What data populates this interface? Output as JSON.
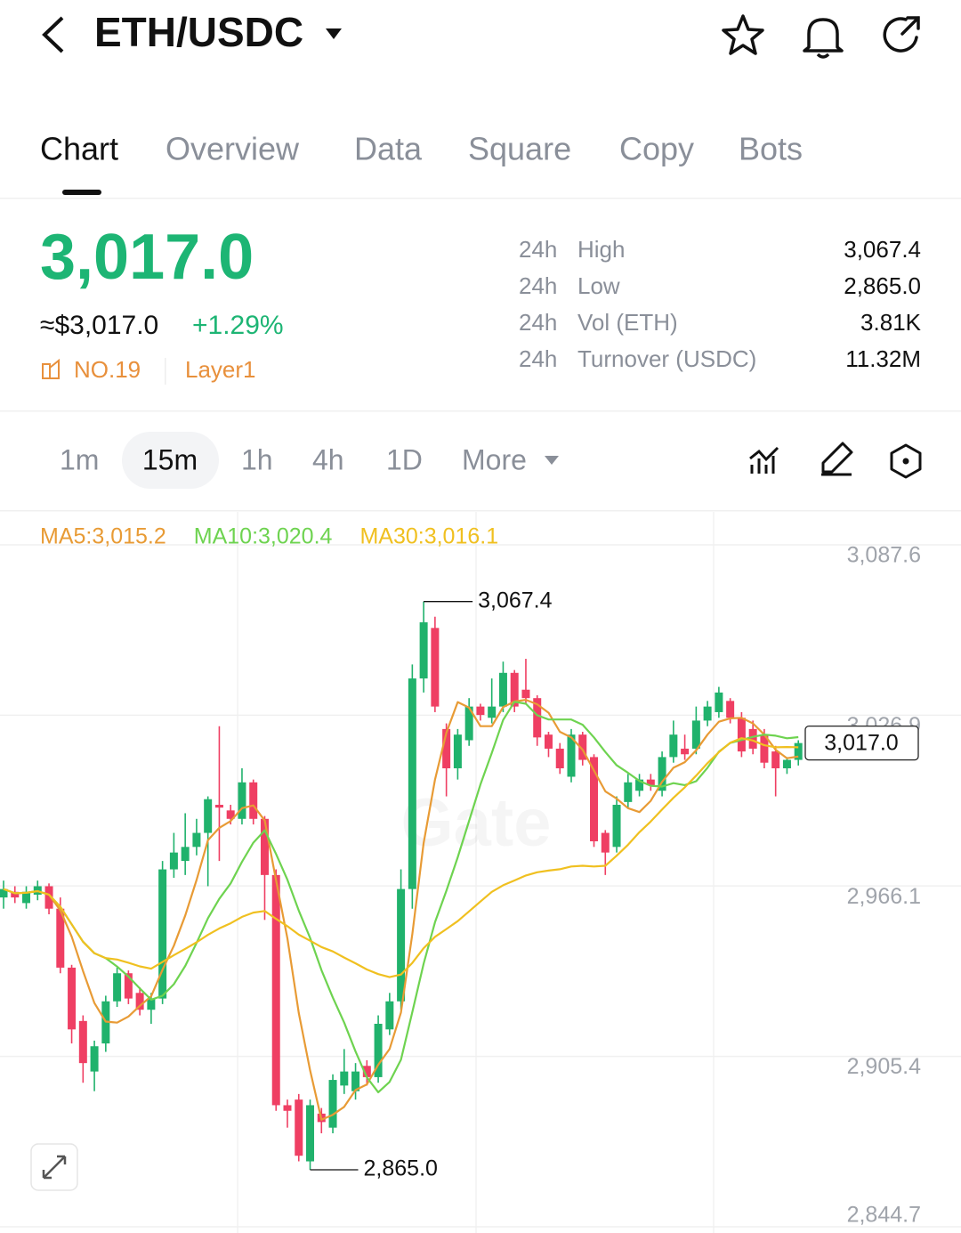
{
  "header": {
    "pair": "ETH/USDC"
  },
  "tabs": [
    "Chart",
    "Overview",
    "Data",
    "Square",
    "Copy",
    "Bots"
  ],
  "price": {
    "last": "3,017.0",
    "fiat": "≈$3,017.0",
    "change": "+1.29%",
    "rank": "NO.19",
    "tag": "Layer1"
  },
  "stats": [
    {
      "period": "24h",
      "label": "High",
      "value": "3,067.4"
    },
    {
      "period": "24h",
      "label": "Low",
      "value": "2,865.0"
    },
    {
      "period": "24h",
      "label": "Vol (ETH)",
      "value": "3.81K"
    },
    {
      "period": "24h",
      "label": "Turnover (USDC)",
      "value": "11.32M"
    }
  ],
  "intervals": [
    "1m",
    "15m",
    "1h",
    "4h",
    "1D",
    "More"
  ],
  "chart_data": {
    "type": "candlestick",
    "watermark": "Gate",
    "grid": true,
    "up_color": "#20b26c",
    "down_color": "#ef3f63",
    "ma": [
      {
        "label": "MA5:3,015.2",
        "color": "#e89b35"
      },
      {
        "label": "MA10:3,020.4",
        "color": "#6ed350"
      },
      {
        "label": "MA30:3,016.1",
        "color": "#f0c020"
      }
    ],
    "ylim": [
      2844.7,
      3087.6
    ],
    "yticks": [
      {
        "value": 2844.7,
        "label": "2,844.7"
      },
      {
        "value": 2905.4,
        "label": "2,905.4"
      },
      {
        "value": 2966.1,
        "label": "2,966.1"
      },
      {
        "value": 3026.9,
        "label": "3,026.9"
      },
      {
        "value": 3087.6,
        "label": "3,087.6"
      }
    ],
    "open": [
      2962,
      2964,
      2960,
      2963,
      2966,
      2958,
      2937,
      2918,
      2900,
      2910,
      2925,
      2935,
      2928,
      2922,
      2926,
      2972,
      2975,
      2980,
      2985,
      2995,
      2993,
      2990,
      3003,
      2990,
      2970,
      2888,
      2890,
      2868,
      2885,
      2880,
      2895,
      2893,
      2902,
      2898,
      2915,
      2925,
      2965,
      3040,
      3058,
      3022,
      3008,
      3018,
      3030,
      3026,
      3030,
      3042,
      3036,
      3033,
      3020,
      3015,
      3005,
      3020,
      3012,
      2985,
      2980,
      2996,
      3000,
      3004,
      3000,
      3012,
      3015,
      3015,
      3025,
      3028,
      3032,
      3026,
      3022,
      3020,
      3014,
      3008,
      3011
    ],
    "high": [
      2968,
      2966,
      2966,
      2968,
      2967,
      2962,
      2938,
      2920,
      2911,
      2927,
      2937,
      2936,
      2930,
      2928,
      2975,
      2985,
      2992,
      2990,
      2998,
      3023,
      2995,
      3008,
      3004,
      2991,
      2972,
      2890,
      2892,
      2890,
      2887,
      2899,
      2908,
      2903,
      2904,
      2920,
      2928,
      2972,
      3045,
      3067.4,
      3062,
      3024,
      3022,
      3033,
      3031,
      3040,
      3046,
      3043,
      3047,
      3034,
      3021,
      3017,
      3022,
      3021,
      3013,
      2986,
      2998,
      3006,
      3006,
      3006,
      3014,
      3025,
      3020,
      3030,
      3032,
      3037,
      3033,
      3028,
      3025,
      3022,
      3016,
      3012,
      3018
    ],
    "low": [
      2958,
      2960,
      2958,
      2961,
      2956,
      2935,
      2910,
      2896,
      2893,
      2907,
      2923,
      2924,
      2920,
      2917,
      2924,
      2969,
      2970,
      2977,
      2966,
      2975,
      2988,
      2988,
      2988,
      2954,
      2886,
      2880,
      2868,
      2865.0,
      2878,
      2878,
      2892,
      2890,
      2895,
      2896,
      2913,
      2922,
      2958,
      3035,
      3028,
      2998,
      3004,
      3016,
      3025,
      3024,
      3028,
      3028,
      3031,
      3016,
      3012,
      3006,
      3003,
      3009,
      2980,
      2970,
      2978,
      2994,
      2998,
      3000,
      2998,
      3010,
      3011,
      3013,
      3023,
      3026,
      3024,
      3012,
      3013,
      3008,
      2998,
      3006,
      3009
    ],
    "close": [
      2965,
      2962,
      2964,
      2966,
      2958,
      2937,
      2915,
      2903,
      2909,
      2925,
      2935,
      2926,
      2922,
      2926,
      2972,
      2978,
      2980,
      2985,
      2997,
      2994,
      2990,
      3003,
      2990,
      2970,
      2888,
      2886,
      2870,
      2888,
      2882,
      2897,
      2900,
      2900,
      2898,
      2917,
      2925,
      2965,
      3040,
      3060,
      3030,
      3008,
      3020,
      3030,
      3027,
      3030,
      3042,
      3030,
      3033,
      3019,
      3015,
      3008,
      3020,
      3011,
      2982,
      2978,
      2995,
      3003,
      3004,
      3002,
      3012,
      3020,
      3013,
      3025,
      3030,
      3035,
      3026,
      3014,
      3015,
      3010,
      3008,
      3011,
      3017.0
    ],
    "annotations": [
      {
        "value": 3067.4,
        "label": "3,067.4"
      },
      {
        "value": 2865.0,
        "label": "2,865.0"
      }
    ],
    "last": {
      "value": 3017.0,
      "label": "3,017.0"
    }
  }
}
